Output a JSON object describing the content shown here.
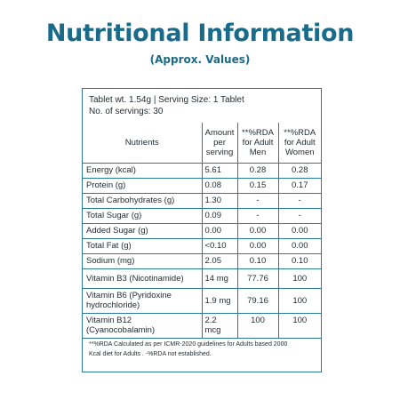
{
  "title": "Nutritional Information",
  "subtitle": "(Approx. Values)",
  "panel": {
    "tablet_line": "Tablet wt. 1.54g | Serving Size: 1 Tablet",
    "servings_line": "No. of servings: 30"
  },
  "table": {
    "headers": {
      "nutrients": "Nutrients",
      "amount_l1": "Amount",
      "amount_l2": "per",
      "amount_l3": "serving",
      "rda_men_l1": "**%RDA",
      "rda_men_l2": "for Adult",
      "rda_men_l3": "Men",
      "rda_women_l1": "**%RDA",
      "rda_women_l2": "for Adult",
      "rda_women_l3": "Women"
    },
    "rows": [
      {
        "nutrient": "Energy (kcal)",
        "amount": "5.61",
        "rda_men": "0.28",
        "rda_women": "0.28"
      },
      {
        "nutrient": "Protein (g)",
        "amount": "0.08",
        "rda_men": "0.15",
        "rda_women": "0.17"
      },
      {
        "nutrient": "Total Carbohydrates (g)",
        "amount": "1.30",
        "rda_men": "-",
        "rda_women": "-"
      },
      {
        "nutrient": "Total Sugar (g)",
        "amount": "0.09",
        "rda_men": "-",
        "rda_women": "-"
      },
      {
        "nutrient": "Added Sugar (g)",
        "amount": "0.00",
        "rda_men": "0.00",
        "rda_women": "0.00"
      },
      {
        "nutrient": "Total Fat (g)",
        "amount": "<0.10",
        "rda_men": "0.00",
        "rda_women": "0.00"
      },
      {
        "nutrient": "Sodium (mg)",
        "amount": "2.05",
        "rda_men": "0.10",
        "rda_women": "0.10"
      },
      {
        "nutrient": "Vitamin B3 (Nicotinamide)",
        "amount": "14 mg",
        "rda_men": "77.76",
        "rda_women": "100"
      },
      {
        "nutrient": "Vitamin B6 (Pyridoxine hydrochloride)",
        "nutrient_l1": "Vitamin B6 (Pyridoxine",
        "nutrient_l2": "hydrochloride)",
        "amount": "1.9 mg",
        "rda_men": "79.16",
        "rda_women": "100"
      },
      {
        "nutrient": "Vitamin B12 (Cyanocobalamin)",
        "nutrient_l1": "Vitamin B12",
        "nutrient_l2": "(Cyanocobalamin)",
        "amount": "2.2 mcg",
        "rda_men": "100",
        "rda_women": "100"
      }
    ]
  },
  "footnote": {
    "line1": "**%RDA Calculated as per ICMR-2020 guidelines for Adults  based 2000",
    "line2": "Kcal diet for Adults . -%RDA not established."
  },
  "colors": {
    "accent": "#1a6b8a",
    "border": "#2b7a98",
    "text": "#1f2a30"
  }
}
